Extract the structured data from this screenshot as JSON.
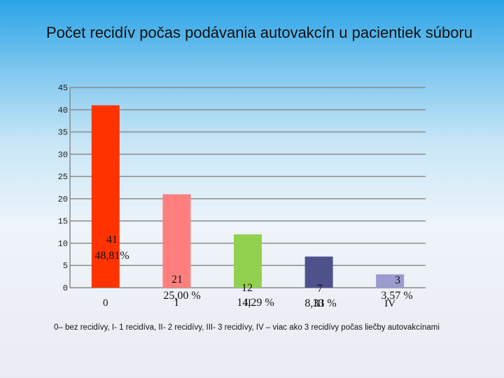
{
  "title": "Počet recidív počas podávania autovakcín u pacientiek súboru",
  "footnote": "0– bez recidívy, I- 1 recidíva, II- 2 recidívy, III- 3 recidívy, IV – viac ako 3 recidívy počas liečby autovakcínami",
  "colors": {
    "axis": "#8a8a8a",
    "grid": "#8a8a8a",
    "bars": [
      "#ff3300",
      "#ff7f7f",
      "#92d050",
      "#4f518b",
      "#9b9bcf"
    ]
  },
  "chart_data": {
    "type": "bar",
    "categories": [
      "0",
      "I",
      "II",
      "III",
      "IV"
    ],
    "values": [
      41,
      21,
      12,
      7,
      3
    ],
    "data_labels": [
      {
        "count": "41",
        "percent": "48,81%"
      },
      {
        "count": "21",
        "percent": "25,00 %"
      },
      {
        "count": "12",
        "percent": "14,29 %"
      },
      {
        "count": "7",
        "percent": "8,33 %"
      },
      {
        "count": "3",
        "percent": "3,57 %"
      }
    ],
    "yticks": [
      "0",
      "5",
      "10",
      "15",
      "20",
      "25",
      "30",
      "35",
      "40",
      "45"
    ],
    "ylim": [
      0,
      45
    ],
    "grid": true
  }
}
